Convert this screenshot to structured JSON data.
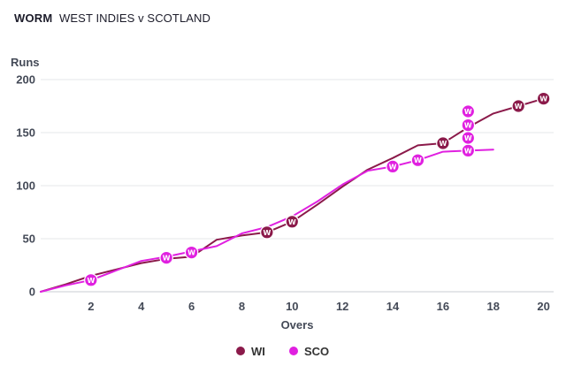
{
  "header": {
    "tag": "WORM",
    "match": "WEST INDIES v SCOTLAND"
  },
  "chart_data": {
    "type": "line",
    "title": "WORM",
    "subtitle": "WEST INDIES v SCOTLAND",
    "xlabel": "Overs",
    "ylabel": "Runs",
    "xlim": [
      0,
      20.4
    ],
    "ylim": [
      0,
      200
    ],
    "xticks": [
      2,
      4,
      6,
      8,
      10,
      12,
      14,
      16,
      18,
      20
    ],
    "yticks": [
      0,
      50,
      100,
      150,
      200
    ],
    "legend_position": "bottom",
    "wicket_label": "W",
    "series": [
      {
        "name": "WI",
        "color": "#8b1a4a",
        "x": [
          0,
          1,
          2,
          3,
          4,
          5,
          6,
          7,
          8,
          9,
          10,
          11,
          12,
          13,
          14,
          15,
          16,
          17,
          18,
          19,
          20
        ],
        "values": [
          0,
          7,
          15,
          21,
          27,
          31,
          33,
          49,
          53,
          56,
          66,
          82,
          99,
          115,
          126,
          138,
          140,
          155,
          168,
          175,
          182
        ],
        "wickets": [
          {
            "over": 9,
            "runs": 56
          },
          {
            "over": 10,
            "runs": 66
          },
          {
            "over": 16,
            "runs": 140
          },
          {
            "over": 19,
            "runs": 175
          },
          {
            "over": 20,
            "runs": 182
          }
        ]
      },
      {
        "name": "SCO",
        "color": "#e020e0",
        "x": [
          0,
          1,
          2,
          3,
          4,
          5,
          6,
          7,
          8,
          9,
          10,
          11,
          12,
          13,
          14,
          15,
          16,
          17,
          18
        ],
        "values": [
          0,
          6,
          11,
          20,
          29,
          33,
          38,
          43,
          55,
          61,
          71,
          85,
          101,
          114,
          118,
          124,
          132,
          133,
          134
        ],
        "wickets": [
          {
            "over": 2,
            "runs": 11
          },
          {
            "over": 5,
            "runs": 32
          },
          {
            "over": 6,
            "runs": 37
          },
          {
            "over": 14,
            "runs": 118
          },
          {
            "over": 15,
            "runs": 124
          },
          {
            "over": 17,
            "runs": 133
          },
          {
            "over": 17,
            "runs": 145
          },
          {
            "over": 17,
            "runs": 157
          },
          {
            "over": 17,
            "runs": 170
          }
        ]
      }
    ]
  }
}
